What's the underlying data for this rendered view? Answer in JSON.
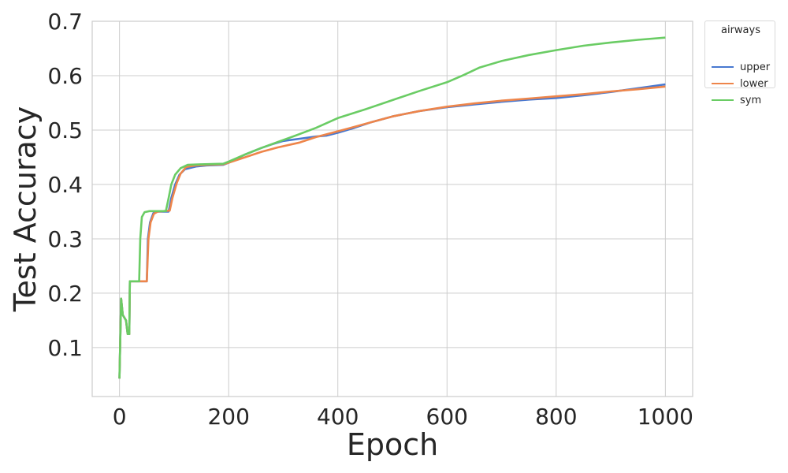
{
  "chart_data": {
    "type": "line",
    "title": "",
    "xlabel": "Epoch",
    "ylabel": "Test Accuracy",
    "xlim": [
      -50,
      1050
    ],
    "ylim": [
      0.01,
      0.7
    ],
    "xticks": [
      0,
      200,
      400,
      600,
      800,
      1000
    ],
    "yticks": [
      0.1,
      0.2,
      0.3,
      0.4,
      0.5,
      0.6,
      0.7
    ],
    "xtick_labels": [
      "0",
      "200",
      "400",
      "600",
      "800",
      "1000"
    ],
    "ytick_labels": [
      "0.1",
      "0.2",
      "0.3",
      "0.4",
      "0.5",
      "0.6",
      "0.7"
    ],
    "grid": true,
    "legend": {
      "title": "airways",
      "placement": "outside-top-right"
    },
    "series": [
      {
        "name": "upper",
        "color": "#4878d0",
        "points": [
          [
            0,
            0.043
          ],
          [
            3,
            0.19
          ],
          [
            6,
            0.16
          ],
          [
            12,
            0.15
          ],
          [
            15,
            0.125
          ],
          [
            18,
            0.125
          ],
          [
            19,
            0.222
          ],
          [
            24,
            0.222
          ],
          [
            50,
            0.222
          ],
          [
            52,
            0.3
          ],
          [
            56,
            0.33
          ],
          [
            62,
            0.347
          ],
          [
            70,
            0.35
          ],
          [
            90,
            0.35
          ],
          [
            95,
            0.375
          ],
          [
            102,
            0.4
          ],
          [
            110,
            0.418
          ],
          [
            120,
            0.428
          ],
          [
            140,
            0.433
          ],
          [
            160,
            0.435
          ],
          [
            190,
            0.436
          ],
          [
            200,
            0.44
          ],
          [
            230,
            0.455
          ],
          [
            260,
            0.467
          ],
          [
            280,
            0.474
          ],
          [
            300,
            0.48
          ],
          [
            330,
            0.484
          ],
          [
            360,
            0.488
          ],
          [
            380,
            0.49
          ],
          [
            400,
            0.495
          ],
          [
            430,
            0.504
          ],
          [
            460,
            0.514
          ],
          [
            500,
            0.525
          ],
          [
            550,
            0.535
          ],
          [
            600,
            0.542
          ],
          [
            650,
            0.547
          ],
          [
            700,
            0.552
          ],
          [
            750,
            0.556
          ],
          [
            800,
            0.559
          ],
          [
            850,
            0.564
          ],
          [
            900,
            0.57
          ],
          [
            950,
            0.577
          ],
          [
            1000,
            0.584
          ]
        ]
      },
      {
        "name": "lower",
        "color": "#ee854a",
        "points": [
          [
            0,
            0.043
          ],
          [
            3,
            0.19
          ],
          [
            6,
            0.16
          ],
          [
            12,
            0.15
          ],
          [
            15,
            0.125
          ],
          [
            18,
            0.125
          ],
          [
            19,
            0.222
          ],
          [
            24,
            0.222
          ],
          [
            50,
            0.222
          ],
          [
            53,
            0.3
          ],
          [
            57,
            0.33
          ],
          [
            63,
            0.346
          ],
          [
            70,
            0.35
          ],
          [
            92,
            0.352
          ],
          [
            97,
            0.375
          ],
          [
            105,
            0.403
          ],
          [
            112,
            0.42
          ],
          [
            122,
            0.432
          ],
          [
            140,
            0.435
          ],
          [
            160,
            0.436
          ],
          [
            190,
            0.437
          ],
          [
            200,
            0.44
          ],
          [
            230,
            0.45
          ],
          [
            260,
            0.46
          ],
          [
            290,
            0.468
          ],
          [
            330,
            0.477
          ],
          [
            360,
            0.487
          ],
          [
            390,
            0.495
          ],
          [
            420,
            0.503
          ],
          [
            460,
            0.514
          ],
          [
            500,
            0.525
          ],
          [
            550,
            0.535
          ],
          [
            600,
            0.543
          ],
          [
            650,
            0.549
          ],
          [
            700,
            0.554
          ],
          [
            750,
            0.558
          ],
          [
            800,
            0.562
          ],
          [
            850,
            0.566
          ],
          [
            900,
            0.571
          ],
          [
            950,
            0.575
          ],
          [
            1000,
            0.58
          ]
        ]
      },
      {
        "name": "sym",
        "color": "#6acc64",
        "points": [
          [
            0,
            0.043
          ],
          [
            3,
            0.19
          ],
          [
            6,
            0.16
          ],
          [
            12,
            0.15
          ],
          [
            15,
            0.125
          ],
          [
            18,
            0.125
          ],
          [
            19,
            0.222
          ],
          [
            24,
            0.222
          ],
          [
            36,
            0.222
          ],
          [
            38,
            0.3
          ],
          [
            41,
            0.34
          ],
          [
            46,
            0.349
          ],
          [
            55,
            0.351
          ],
          [
            85,
            0.351
          ],
          [
            90,
            0.375
          ],
          [
            95,
            0.4
          ],
          [
            102,
            0.418
          ],
          [
            112,
            0.43
          ],
          [
            125,
            0.436
          ],
          [
            150,
            0.437
          ],
          [
            190,
            0.438
          ],
          [
            200,
            0.442
          ],
          [
            230,
            0.455
          ],
          [
            260,
            0.467
          ],
          [
            290,
            0.478
          ],
          [
            320,
            0.489
          ],
          [
            360,
            0.504
          ],
          [
            400,
            0.522
          ],
          [
            450,
            0.538
          ],
          [
            500,
            0.555
          ],
          [
            550,
            0.572
          ],
          [
            600,
            0.588
          ],
          [
            630,
            0.601
          ],
          [
            660,
            0.615
          ],
          [
            700,
            0.627
          ],
          [
            750,
            0.638
          ],
          [
            800,
            0.647
          ],
          [
            850,
            0.655
          ],
          [
            900,
            0.661
          ],
          [
            950,
            0.666
          ],
          [
            1000,
            0.67
          ]
        ]
      }
    ]
  }
}
